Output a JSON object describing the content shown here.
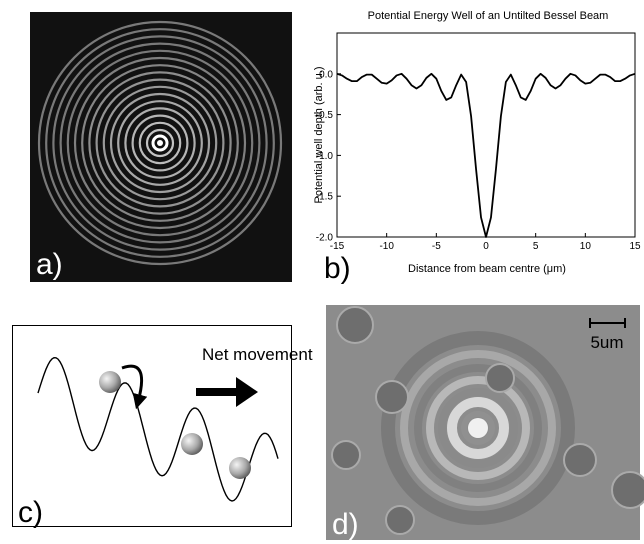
{
  "panels": {
    "a": {
      "label": "a)"
    },
    "b": {
      "label": "b)"
    },
    "c": {
      "label": "c)",
      "annotation": "Net movement"
    },
    "d": {
      "label": "d)",
      "scale_bar": "5um"
    }
  },
  "chart_data": {
    "type": "line",
    "title": "Potential Energy Well of an Untilted Bessel Beam",
    "x_label": "Distance from beam centre (μm)",
    "y_label": "Potential well depth (arb. u.)",
    "color": "#000000",
    "x": [
      -15,
      -14.5,
      -14,
      -13.5,
      -13,
      -12.5,
      -12,
      -11.5,
      -11,
      -10.5,
      -10,
      -9.5,
      -9,
      -8.5,
      -8,
      -7.5,
      -7,
      -6.5,
      -6,
      -5.5,
      -5,
      -4.5,
      -4,
      -3.5,
      -3,
      -2.5,
      -2,
      -1.5,
      -1,
      -0.5,
      0,
      0.5,
      1,
      1.5,
      2,
      2.5,
      3,
      3.5,
      4,
      4.5,
      5,
      5.5,
      6,
      6.5,
      7,
      7.5,
      8,
      8.5,
      9,
      9.5,
      10,
      10.5,
      11,
      11.5,
      12,
      12.5,
      13,
      13.5,
      14,
      14.5,
      15
    ],
    "values": [
      0.0,
      -0.02,
      -0.06,
      -0.09,
      -0.09,
      -0.04,
      -0.01,
      -0.01,
      -0.06,
      -0.11,
      -0.12,
      -0.08,
      -0.02,
      0.0,
      -0.06,
      -0.14,
      -0.18,
      -0.14,
      -0.05,
      0.0,
      -0.06,
      -0.21,
      -0.32,
      -0.29,
      -0.14,
      -0.01,
      -0.1,
      -0.52,
      -1.17,
      -1.76,
      -2.0,
      -1.76,
      -1.17,
      -0.52,
      -0.1,
      -0.01,
      -0.14,
      -0.29,
      -0.32,
      -0.21,
      -0.06,
      0.0,
      -0.05,
      -0.14,
      -0.18,
      -0.14,
      -0.06,
      0.0,
      -0.02,
      -0.08,
      -0.12,
      -0.11,
      -0.06,
      -0.01,
      -0.01,
      -0.04,
      -0.09,
      -0.09,
      -0.06,
      -0.02,
      0.0
    ],
    "xlim": [
      -15,
      15
    ],
    "ylim": [
      -2,
      0.5
    ],
    "xticks": [
      -15,
      -10,
      -5,
      0,
      5,
      10,
      15
    ],
    "yticks": [
      {
        "value": -2,
        "label": "-2.0"
      },
      -1.5,
      {
        "value": -1,
        "label": "-1.0"
      },
      -0.5,
      {
        "value": 0,
        "label": "0.0"
      }
    ]
  }
}
